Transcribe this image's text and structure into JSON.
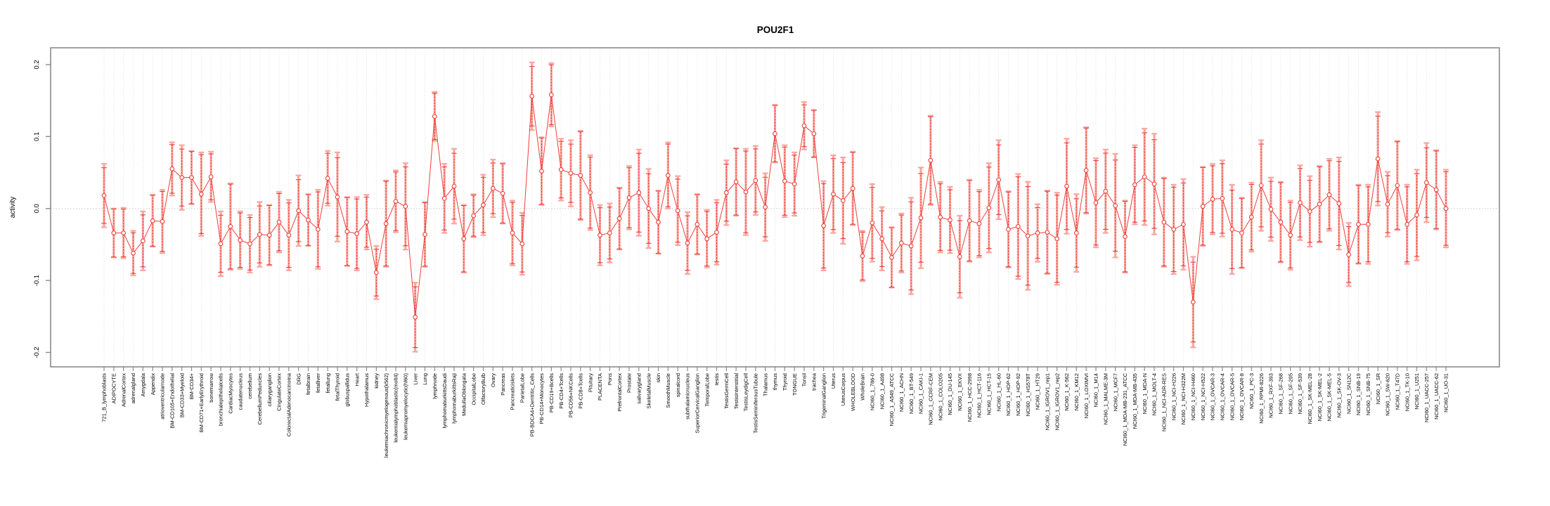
{
  "colors": {
    "series": "#ef3f38",
    "error_bar_light": "#f9a7a2",
    "marker_fill": "#ffffff",
    "grid": "#dcdcdc",
    "zero_line": "#c8c8c8",
    "box": "#8a8a8a",
    "text": "#000000",
    "background": "#ffffff"
  },
  "chart_data": {
    "type": "scatter",
    "title": "POU2F1",
    "xlabel": "",
    "ylabel": "activity",
    "ylim": [
      -0.22,
      0.223
    ],
    "yticks": [
      0.2,
      0.1,
      0.0,
      -0.1,
      -0.2
    ],
    "ytick_labels": [
      "0.2",
      "0.1",
      "0.0",
      "-0.1",
      "-0.2"
    ],
    "grid": "vertical dotted line at every category; horizontal dotted line at 0",
    "legend": "none",
    "marker": "open-circle with symmetric error bars (thick light-red band + thin red dashed bar with caps), points connected by red line",
    "categories": [
      "721_B_lymphoblasts",
      "ADIPOCYTE",
      "AdrenalCortex",
      "adrenalgland",
      "Amygdala",
      "Appendix",
      "atrioventricularnode",
      "BM-CD105+Endothelial",
      "BM-CD33+Myeloid",
      "BM-CD34+",
      "BM-CD71+EarlyErythroid",
      "bonemarrow",
      "bronchialepithelialcells",
      "CardiacMyocytes",
      "caudatenucleus",
      "cerebellum",
      "CerebellumPeduncles",
      "ciliaryganglion",
      "CingulateCortex",
      "ColorectalAdenocarcinoma",
      "DRG",
      "fetalbrain",
      "fetalliver",
      "fetallung",
      "fetalThyroid",
      "globuspallidus",
      "Heart",
      "Hypothalamus",
      "kidney",
      "leukemiachronicmyelogenous(k562)",
      "leukemialymphoblastic(molt4)",
      "leukemiapromyelocytic(hl60)",
      "Liver",
      "Lung",
      "lymphnode",
      "lymphomaburkittsDaudi",
      "lymphomaburkittsRaji",
      "MedullaOblongata",
      "OccipitalLobe",
      "OlfactoryBulb",
      "Ovary",
      "Pancreas",
      "Pancreaticislets",
      "ParietalLobe",
      "PB-BDCA4+Dentritic_Cells",
      "PB-CD14+Monocytes",
      "PB-CD19+Bcells",
      "PB-CD4+Tcells",
      "PB-CD56+NKCells",
      "PB-CD8+Tcells",
      "Pituitary",
      "PLACENTA",
      "Pons",
      "PrefrontalCortex",
      "Prostate",
      "salivarygland",
      "SkeletalMuscle",
      "skin",
      "SmoothMuscle",
      "spinalcord",
      "subthalamicnucleus",
      "SuperiorCervicalGanglion",
      "TemporalLobe",
      "testis",
      "TestisGermCell",
      "TestisInterstitial",
      "TestisLeydigCell",
      "TestisSeminiferousTubule",
      "Thalamus",
      "thymus",
      "Thyroid",
      "TONGUE",
      "Tonsil",
      "trachea",
      "TrigeminalGanglion",
      "Uterus",
      "UterusCorpus",
      "WHOLEBLOOD",
      "WholeBrain",
      "NCI60_1_786-0",
      "NCI60_1_A498",
      "NCI60_1_A549_ATCC",
      "NCI60_1_ACHN",
      "NCI60_1_BT-549",
      "NCI60_1_CAKI-1",
      "NCI60_1_CCRF-CEM",
      "NCI60_1_COLO205",
      "NCI60_1_DU-145",
      "NCI60_1_EKVX",
      "NCI60_1_HCC-2998",
      "NCI60_1_HCT-116",
      "NCI60_1_HCT-15",
      "NCI60_1_HL-60",
      "NCI60_1_HOP-62",
      "NCI60_1_HOP-92",
      "NCI60_1_HS578T",
      "NCI60_1_HT29",
      "NCI60_1_IGROV1_rep1",
      "NCI60_1_IGROV1_rep2",
      "NCI60_1_K-562",
      "NCI60_1_KM12",
      "NCI60_1_LOXIMVI",
      "NCI60_1_M14",
      "NCI60_1_MALME-3M",
      "NCI60_1_MCF7",
      "NCI60_1_MDA-MB-231_ATCC",
      "NCI60_1_MDA-MB-435",
      "NCI60_1_MDA-N",
      "NCI60_1_MOLT-4",
      "NCI60_1_NCI-ADR-RES",
      "NCI60_1_NCI-H226",
      "NCI60_1_NCI-H322M",
      "NCI60_1_NCI-H460",
      "NCI60_1_NCI-H522",
      "NCI60_1_OVCAR-3",
      "NCI60_1_OVCAR-4",
      "NCI60_1_OVCAR-5",
      "NCI60_1_OVCAR-8",
      "NCI60_1_PC-3",
      "NCI60_1_RPMI-8226",
      "NCI60_1_RXF-393",
      "NCI60_1_SF-268",
      "NCI60_1_SF-295",
      "NCI60_1_SF-539",
      "NCI60_1_SK-MEL-28",
      "NCI60_1_SK-MEL-2",
      "NCI60_1_SK-MEL-5",
      "NCI60_1_SK-OV-3",
      "NCI60_1_SN12C",
      "NCI60_1_SNB-19",
      "NCI60_1_SNB-75",
      "NCI60_1_SR",
      "NCI60_1_SW-620",
      "NCI60_1_T47D",
      "NCI60_1_TK-10",
      "NCI60_1_U251",
      "NCI60_1_UACC-257",
      "NCI60_1_UACC-62",
      "NCI60_1_UO-31"
    ],
    "values": [
      0.018,
      -0.034,
      -0.034,
      -0.062,
      -0.045,
      -0.017,
      -0.018,
      0.055,
      0.043,
      0.043,
      0.02,
      0.044,
      -0.049,
      -0.025,
      -0.044,
      -0.049,
      -0.036,
      -0.037,
      -0.019,
      -0.037,
      -0.003,
      -0.016,
      -0.029,
      0.042,
      0.016,
      -0.032,
      -0.035,
      -0.019,
      -0.089,
      -0.021,
      0.01,
      0.003,
      -0.151,
      -0.036,
      0.128,
      0.014,
      0.031,
      -0.042,
      -0.01,
      0.005,
      0.028,
      0.021,
      -0.034,
      -0.049,
      0.156,
      0.052,
      0.158,
      0.054,
      0.049,
      0.046,
      0.022,
      -0.037,
      -0.034,
      -0.014,
      0.015,
      0.022,
      0.0,
      -0.019,
      0.046,
      -0.003,
      -0.048,
      -0.022,
      -0.042,
      -0.033,
      0.022,
      0.037,
      0.023,
      0.039,
      0.002,
      0.104,
      0.038,
      0.034,
      0.115,
      0.104,
      -0.024,
      0.02,
      0.011,
      0.028,
      -0.066,
      -0.02,
      -0.042,
      -0.068,
      -0.048,
      -0.052,
      -0.013,
      0.067,
      -0.012,
      -0.016,
      -0.067,
      -0.017,
      -0.021,
      0.001,
      0.04,
      -0.029,
      -0.025,
      -0.038,
      -0.034,
      -0.033,
      -0.042,
      0.031,
      -0.034,
      0.053,
      0.008,
      0.024,
      0.004,
      -0.039,
      0.033,
      0.044,
      0.034,
      -0.019,
      -0.029,
      -0.022,
      -0.13,
      0.003,
      0.013,
      0.014,
      -0.029,
      -0.034,
      -0.012,
      0.032,
      -0.001,
      -0.019,
      -0.037,
      0.008,
      -0.004,
      0.006,
      0.019,
      0.007,
      -0.064,
      -0.022,
      -0.022,
      0.069,
      0.006,
      0.032,
      -0.022,
      -0.009,
      0.036,
      0.026,
      0.0
    ],
    "errors": [
      0.044,
      0.034,
      0.035,
      0.031,
      0.041,
      0.036,
      0.044,
      0.037,
      0.045,
      0.037,
      0.058,
      0.035,
      0.045,
      0.06,
      0.04,
      0.04,
      0.045,
      0.042,
      0.042,
      0.049,
      0.049,
      0.036,
      0.055,
      0.038,
      0.062,
      0.048,
      0.051,
      0.038,
      0.037,
      0.06,
      0.043,
      0.06,
      0.048,
      0.045,
      0.034,
      0.048,
      0.052,
      0.047,
      0.03,
      0.042,
      0.04,
      0.042,
      0.045,
      0.043,
      0.047,
      0.047,
      0.044,
      0.043,
      0.046,
      0.062,
      0.052,
      0.042,
      0.041,
      0.043,
      0.044,
      0.06,
      0.055,
      0.044,
      0.046,
      0.048,
      0.043,
      0.042,
      0.04,
      0.045,
      0.045,
      0.047,
      0.06,
      0.048,
      0.047,
      0.04,
      0.05,
      0.044,
      0.033,
      0.033,
      0.062,
      0.054,
      0.06,
      0.051,
      0.035,
      0.054,
      0.044,
      0.042,
      0.041,
      0.067,
      0.07,
      0.062,
      0.049,
      0.046,
      0.057,
      0.057,
      0.047,
      0.062,
      0.055,
      0.053,
      0.073,
      0.075,
      0.04,
      0.058,
      0.064,
      0.066,
      0.054,
      0.06,
      0.062,
      0.058,
      0.072,
      0.05,
      0.055,
      0.067,
      0.07,
      0.062,
      0.062,
      0.063,
      0.063,
      0.055,
      0.049,
      0.053,
      0.062,
      0.049,
      0.048,
      0.063,
      0.044,
      0.056,
      0.048,
      0.052,
      0.049,
      0.053,
      0.05,
      0.064,
      0.044,
      0.055,
      0.055,
      0.065,
      0.045,
      0.062,
      0.055,
      0.063,
      0.055,
      0.055,
      0.054
    ]
  }
}
